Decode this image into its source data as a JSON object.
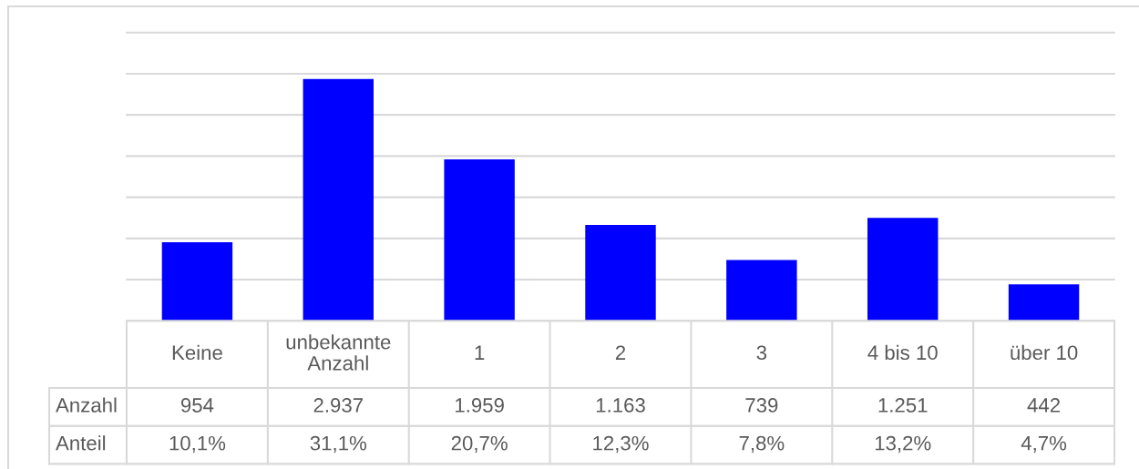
{
  "chart_data": {
    "type": "bar",
    "categories": [
      "Keine",
      "unbekannte Anzahl",
      "1",
      "2",
      "3",
      "4 bis 10",
      "über 10"
    ],
    "series": [
      {
        "name": "Anzahl",
        "color": "#0000ff",
        "values": [
          954,
          2937,
          1959,
          1163,
          739,
          1251,
          442
        ],
        "value_labels": [
          "954",
          "2.937",
          "1.959",
          "1.163",
          "739",
          "1.251",
          "442"
        ]
      }
    ],
    "annotations": [
      "Anteil",
      "10,1%",
      "31,1%",
      "20,7%",
      "12,3%",
      "7,8%",
      "13,2%",
      "4,7%"
    ],
    "ylim": [
      0,
      3500
    ],
    "yticks": [
      {
        "value": 0,
        "label": null
      },
      {
        "value": 500,
        "label": null
      },
      {
        "value": 1000,
        "label": null
      },
      {
        "value": 1500,
        "label": null
      },
      {
        "value": 2000,
        "label": null
      },
      {
        "value": 2500,
        "label": null
      },
      {
        "value": 3000,
        "label": null
      },
      {
        "value": 3500,
        "label": null
      }
    ],
    "grid": "y",
    "tick_labels": "x"
  }
}
